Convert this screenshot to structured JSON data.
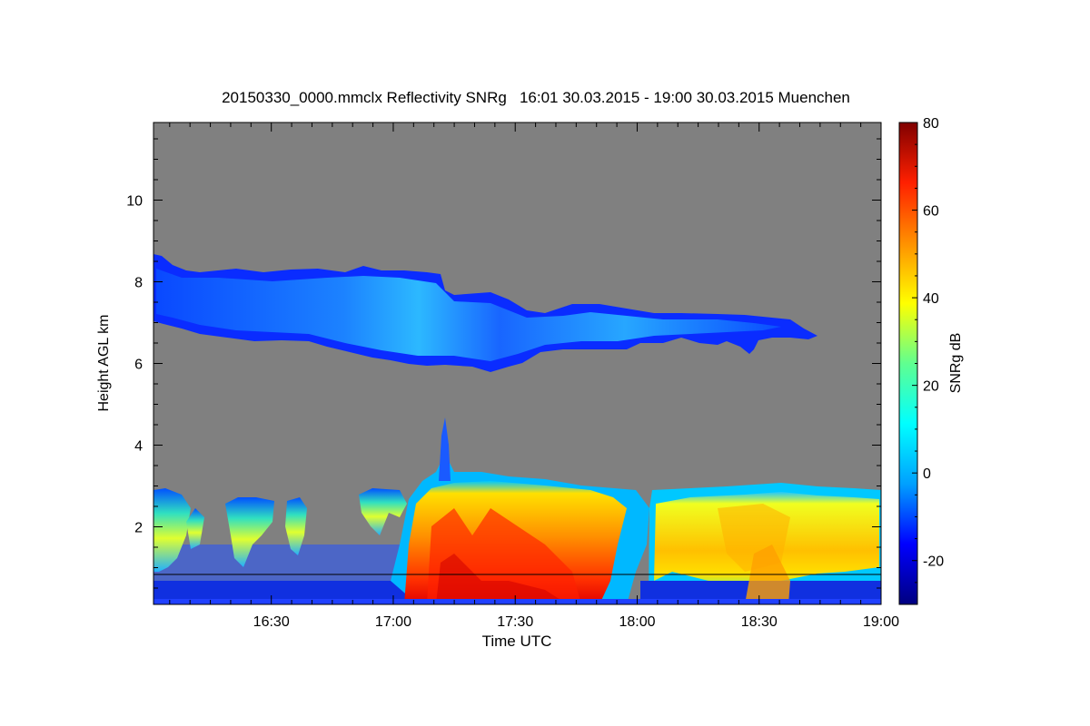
{
  "chart_data": {
    "type": "heatmap",
    "title": "20150330_0000.mmclx Reflectivity SNRg   16:01 30.03.2015 - 19:00 30.03.2015 Muenchen",
    "xlabel": "Time UTC",
    "ylabel": "Height AGL km",
    "colorbar_label": "SNRg dB",
    "x_range_hours": [
      16.017,
      19.0
    ],
    "ylim_km": [
      0.1,
      11.9
    ],
    "x_ticks": [
      {
        "hour": 16.5,
        "label": "16:30"
      },
      {
        "hour": 17.0,
        "label": "17:00"
      },
      {
        "hour": 17.5,
        "label": "17:30"
      },
      {
        "hour": 18.0,
        "label": "18:00"
      },
      {
        "hour": 18.5,
        "label": "18:30"
      },
      {
        "hour": 19.0,
        "label": "19:00"
      }
    ],
    "y_ticks": [
      {
        "value": 2,
        "label": "2"
      },
      {
        "value": 4,
        "label": "4"
      },
      {
        "value": 6,
        "label": "6"
      },
      {
        "value": 8,
        "label": "8"
      },
      {
        "value": 10,
        "label": "10"
      }
    ],
    "colorbar_range_db": [
      -30,
      80
    ],
    "colorbar_ticks": [
      {
        "value": -20,
        "label": "-20"
      },
      {
        "value": 0,
        "label": "0"
      },
      {
        "value": 20,
        "label": "20"
      },
      {
        "value": 40,
        "label": "40"
      },
      {
        "value": 60,
        "label": "60"
      },
      {
        "value": 80,
        "label": "80"
      }
    ],
    "colormap": [
      "#000080",
      "#0000ff",
      "#00a0ff",
      "#00ffff",
      "#60ff90",
      "#ffff00",
      "#ff9000",
      "#ff2000",
      "#800000"
    ],
    "background_color": "#808080",
    "horizontal_reference_line_km": 0.9,
    "features": [
      {
        "name": "upper cloud layer",
        "hours": [
          16.02,
          18.85
        ],
        "base_km": [
          7.0,
          6.0,
          6.6
        ],
        "top_km": [
          8.7,
          8.4,
          7.2
        ],
        "snr_db": [
          0,
          12
        ]
      },
      {
        "name": "low precipitation layer",
        "hours": [
          17.05,
          19.0
        ],
        "base_km": 0.1,
        "top_km": [
          3.5,
          3.0
        ],
        "snr_db": [
          30,
          70
        ]
      },
      {
        "name": "early low cloud cells",
        "hours": [
          16.02,
          17.0
        ],
        "base_km": 0.1,
        "top_km": 3.0,
        "snr_db": [
          0,
          35
        ]
      }
    ]
  }
}
